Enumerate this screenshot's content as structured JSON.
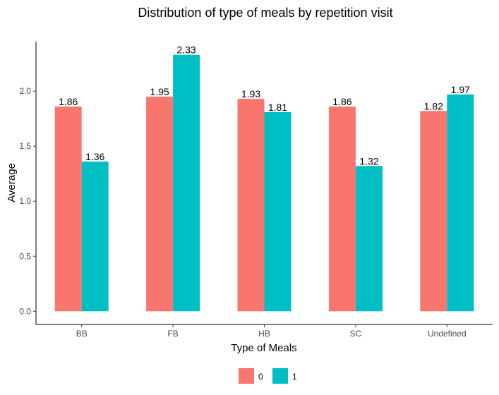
{
  "chart_data": {
    "type": "bar",
    "title": "Distribution of type of meals by repetition visit",
    "xlabel": "Type of Meals",
    "ylabel": "Average",
    "categories": [
      "BB",
      "FB",
      "HB",
      "SC",
      "Undefined"
    ],
    "series": [
      {
        "name": "0",
        "color": "#F8766D",
        "values": [
          1.86,
          1.95,
          1.93,
          1.86,
          1.82
        ],
        "labels": [
          "1.86",
          "1.95",
          "1.93",
          "1.86",
          "1.82"
        ]
      },
      {
        "name": "1",
        "color": "#00BFC4",
        "values": [
          1.36,
          2.33,
          1.81,
          1.32,
          1.97
        ],
        "labels": [
          "1.36",
          "2.33",
          "1.81",
          "1.32",
          "1.97"
        ]
      }
    ],
    "yticks": [
      0,
      0.5,
      1,
      1.5,
      2
    ],
    "ytick_labels": [
      "0.0",
      "0.5",
      "1.0",
      "1.5",
      "2.0"
    ],
    "ylim": [
      -0.12,
      2.45
    ],
    "grid": false,
    "legend_position": "bottom"
  }
}
